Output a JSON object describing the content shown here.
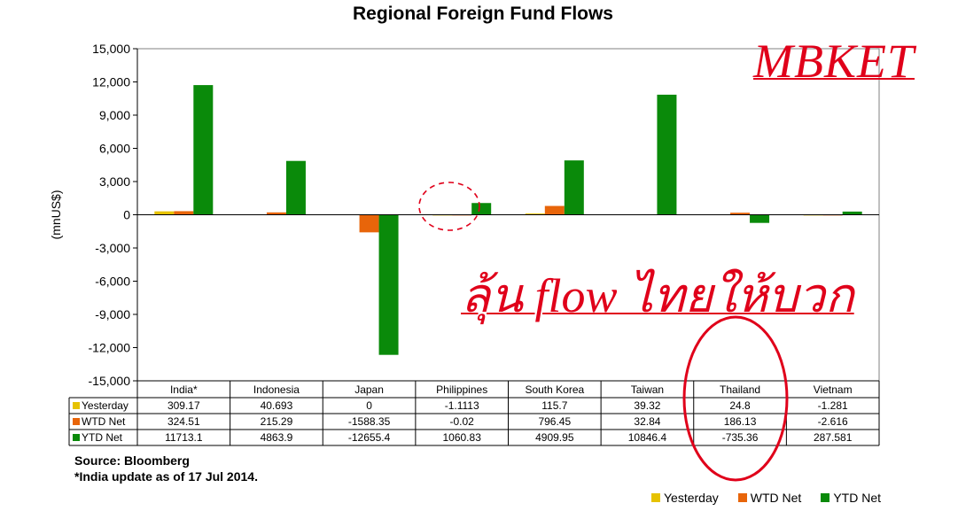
{
  "chart_data": {
    "type": "bar",
    "title": "Regional Foreign Fund Flows",
    "ylabel": "(mnUS$)",
    "ylim": [
      -15000,
      15000
    ],
    "yticks": [
      15000,
      12000,
      9000,
      6000,
      3000,
      0,
      -3000,
      -6000,
      -9000,
      -12000,
      -15000
    ],
    "ytick_labels": [
      "15,000",
      "12,000",
      "9,000",
      "6,000",
      "3,000",
      "0",
      "-3,000",
      "-6,000",
      "-9,000",
      "-12,000",
      "-15,000"
    ],
    "categories": [
      "India*",
      "Indonesia",
      "Japan",
      "Philippines",
      "South Korea",
      "Taiwan",
      "Thailand",
      "Vietnam"
    ],
    "series": [
      {
        "name": "Yesterday",
        "color": "#e6c200",
        "values": [
          309.17,
          40.693,
          0,
          -1.1113,
          115.7,
          39.32,
          24.8,
          -1.281
        ],
        "labels": [
          "309.17",
          "40.693",
          "0",
          "-1.1113",
          "115.7",
          "39.32",
          "24.8",
          "-1.281"
        ]
      },
      {
        "name": "WTD Net",
        "color": "#e8650a",
        "values": [
          324.51,
          215.29,
          -1588.35,
          -0.02,
          796.45,
          32.84,
          186.13,
          -2.616
        ],
        "labels": [
          "324.51",
          "215.29",
          "-1588.35",
          "-0.02",
          "796.45",
          "32.84",
          "186.13",
          "-2.616"
        ]
      },
      {
        "name": "YTD Net",
        "color": "#0a8a0a",
        "values": [
          11713.1,
          4863.9,
          -12655.4,
          1060.83,
          4909.95,
          10846.4,
          -735.36,
          287.581
        ],
        "labels": [
          "11713.1",
          "4863.9",
          "-12655.4",
          "1060.83",
          "4909.95",
          "10846.4",
          "-735.36",
          "287.581"
        ]
      }
    ],
    "grid": false,
    "legend_position": "bottom-right"
  },
  "source_note": "Source: Bloomberg",
  "india_note": "*India update as of 17 Jul 2014.",
  "watermark": "MBKET",
  "annotation": "ลุ้น flow ไทยให้บวก",
  "annotation_color": "#e0001a"
}
